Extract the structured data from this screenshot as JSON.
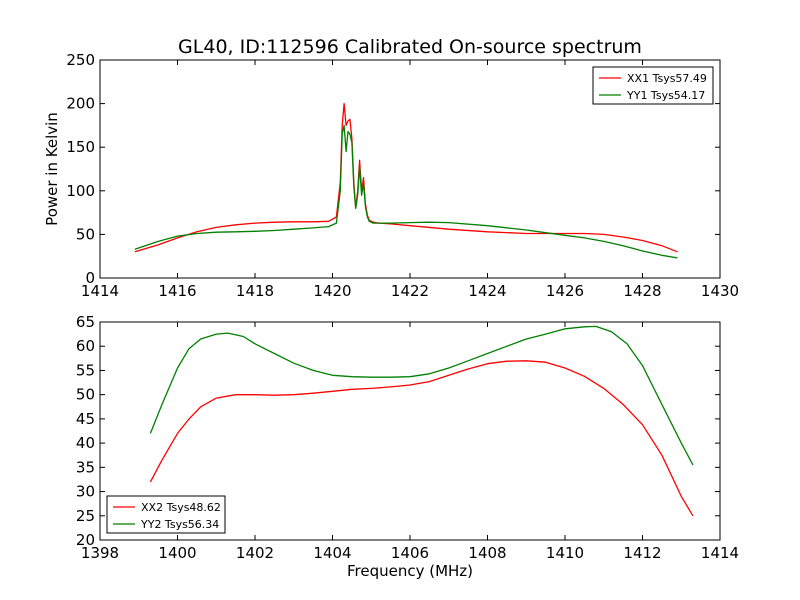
{
  "chart_data": [
    {
      "type": "line",
      "title": "GL40, ID:112596 Calibrated On-source spectrum",
      "xlabel": "",
      "ylabel": "Power in Kelvin",
      "xlim": [
        1414,
        1430
      ],
      "ylim": [
        0,
        250
      ],
      "xticks": [
        1414,
        1416,
        1418,
        1420,
        1422,
        1424,
        1426,
        1428,
        1430
      ],
      "yticks": [
        0,
        50,
        100,
        150,
        200,
        250
      ],
      "grid": false,
      "legend_position": "top-right",
      "series": [
        {
          "name": "XX1 Tsys57.49",
          "color": "#ff0000",
          "x": [
            1414.9,
            1415.5,
            1416,
            1416.5,
            1417,
            1417.5,
            1418,
            1418.5,
            1419,
            1419.5,
            1419.9,
            1420.1,
            1420.2,
            1420.25,
            1420.3,
            1420.35,
            1420.4,
            1420.45,
            1420.5,
            1420.55,
            1420.6,
            1420.65,
            1420.7,
            1420.75,
            1420.8,
            1420.85,
            1420.9,
            1420.95,
            1421.05,
            1421.2,
            1421.5,
            1422,
            1423,
            1424,
            1425,
            1425.5,
            1426,
            1426.5,
            1427,
            1427.5,
            1428,
            1428.5,
            1428.9
          ],
          "values": [
            30,
            38,
            46,
            53,
            58,
            61,
            63,
            64,
            64.5,
            64.5,
            65,
            70,
            110,
            175,
            200,
            175,
            180,
            182,
            160,
            110,
            80,
            100,
            135,
            100,
            115,
            85,
            72,
            66,
            64,
            63,
            62,
            60,
            56,
            53,
            51,
            51,
            51,
            51,
            50,
            47,
            43,
            37,
            30
          ]
        },
        {
          "name": "YY1 Tsys54.17",
          "color": "#008000",
          "x": [
            1414.9,
            1415.5,
            1416,
            1416.5,
            1417,
            1417.5,
            1418,
            1418.5,
            1419,
            1419.5,
            1419.9,
            1420.1,
            1420.2,
            1420.25,
            1420.3,
            1420.35,
            1420.4,
            1420.45,
            1420.5,
            1420.55,
            1420.6,
            1420.65,
            1420.7,
            1420.75,
            1420.8,
            1420.85,
            1420.9,
            1420.95,
            1421.05,
            1421.2,
            1421.5,
            1422,
            1422.5,
            1423,
            1424,
            1425,
            1425.5,
            1426,
            1426.5,
            1427,
            1427.5,
            1428,
            1428.5,
            1428.9
          ],
          "values": [
            33,
            42,
            48,
            51,
            52.5,
            53,
            53.5,
            54.5,
            56,
            57.5,
            59,
            63,
            100,
            165,
            175,
            145,
            168,
            165,
            155,
            105,
            80,
            95,
            128,
            95,
            108,
            82,
            70,
            65,
            63,
            63,
            63,
            63.5,
            64,
            63.5,
            60,
            55,
            52,
            49,
            46,
            42,
            37,
            31,
            26,
            23
          ]
        }
      ]
    },
    {
      "type": "line",
      "title": "",
      "xlabel": "Frequency (MHz)",
      "ylabel": "",
      "xlim": [
        1398,
        1414
      ],
      "ylim": [
        20,
        65
      ],
      "xticks": [
        1398,
        1400,
        1402,
        1404,
        1406,
        1408,
        1410,
        1412,
        1414
      ],
      "yticks": [
        20,
        25,
        30,
        35,
        40,
        45,
        50,
        55,
        60,
        65
      ],
      "grid": false,
      "legend_position": "bottom-left",
      "series": [
        {
          "name": "XX2 Tsys48.62",
          "color": "#ff0000",
          "x": [
            1399.3,
            1399.6,
            1400,
            1400.3,
            1400.6,
            1401,
            1401.5,
            1402,
            1402.5,
            1403,
            1403.5,
            1404,
            1404.5,
            1405,
            1405.5,
            1406,
            1406.5,
            1407,
            1407.5,
            1408,
            1408.5,
            1409,
            1409.5,
            1410,
            1410.5,
            1411,
            1411.5,
            1412,
            1412.5,
            1413,
            1413.3
          ],
          "values": [
            32,
            36.5,
            42,
            45,
            47.5,
            49.3,
            50,
            50,
            49.9,
            50,
            50.3,
            50.7,
            51.1,
            51.3,
            51.6,
            52,
            52.7,
            54,
            55.3,
            56.4,
            56.9,
            57,
            56.7,
            55.5,
            53.8,
            51.3,
            48,
            43.8,
            37.5,
            29,
            25
          ]
        },
        {
          "name": "YY2 Tsys56.34",
          "color": "#008000",
          "x": [
            1399.3,
            1399.6,
            1400,
            1400.3,
            1400.6,
            1401,
            1401.3,
            1401.7,
            1402,
            1402.5,
            1403,
            1403.5,
            1404,
            1404.5,
            1405,
            1405.5,
            1406,
            1406.5,
            1407,
            1407.5,
            1408,
            1408.5,
            1409,
            1409.5,
            1410,
            1410.5,
            1410.8,
            1411.2,
            1411.6,
            1412,
            1412.5,
            1413,
            1413.3
          ],
          "values": [
            42,
            48,
            55.5,
            59.5,
            61.5,
            62.5,
            62.7,
            62,
            60.5,
            58.5,
            56.5,
            55,
            54,
            53.7,
            53.6,
            53.6,
            53.7,
            54.3,
            55.5,
            57,
            58.5,
            60,
            61.5,
            62.5,
            63.6,
            64,
            64.1,
            63,
            60.5,
            56,
            48,
            40,
            35.5
          ]
        }
      ]
    }
  ]
}
